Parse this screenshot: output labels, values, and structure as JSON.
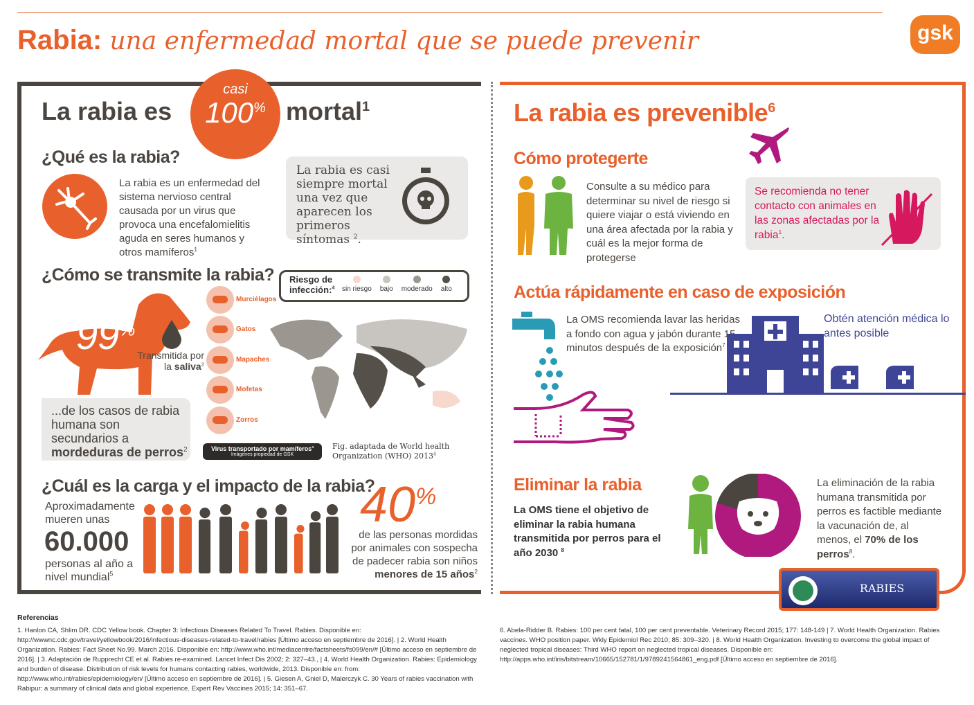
{
  "header": {
    "title_bold": "Rabia:",
    "title_italic": "una enfermedad mortal que se puede prevenir",
    "logo": "gsk"
  },
  "left": {
    "heading": {
      "pre": "La rabia es",
      "casi": "casi",
      "number": "100",
      "percent": "%",
      "post": "mortal",
      "ref": "1"
    },
    "what": {
      "title": "¿Qué es la rabia?",
      "text": "La rabia es un enfermedad del sistema nervioso central causada por un virus que provoca una encefalomielitis aguda en seres humanos y otros mamíferos",
      "ref": "1",
      "box_text": "La rabia es casi siempre mortal una vez que aparecen los primeros síntomas",
      "box_ref": "2",
      "box_end": "."
    },
    "transmission": {
      "title": "¿Cómo se transmite la rabia?",
      "number": "99",
      "percent": "%",
      "saliva_pre": "Transmitida por la",
      "saliva_bold": "saliva",
      "saliva_ref": "2",
      "cases_pre": "...de los casos de rabia humana son secundarios a",
      "cases_bold": "mordeduras de perros",
      "cases_ref": "2",
      "animals": [
        "Murciélagos",
        "Gatos",
        "Mapaches",
        "Mofetas",
        "Zorros"
      ],
      "legend_title": "Riesgo de infección:",
      "legend_ref": "4",
      "legend_items": [
        {
          "label": "sin riesgo",
          "color": "#f6d8cd"
        },
        {
          "label": "bajo",
          "color": "#c8c4bf"
        },
        {
          "label": "moderado",
          "color": "#9b968f"
        },
        {
          "label": "alto",
          "color": "#55504a"
        }
      ],
      "virus_caption": "Virus transportado por mamíferos",
      "virus_ref": "3",
      "images_caption": "Imágenes propiedad de GSK",
      "fig_caption": "Fig. adaptada de World health Organization (WHO) 2013",
      "fig_ref": "4"
    },
    "burden": {
      "title": "¿Cuál es la carga y el impacto de la rabia?",
      "pre": "Aproximadamente mueren unas",
      "number": "60.000",
      "post": "personas al año a nivel mundial",
      "ref": "5",
      "pct_number": "40",
      "pct_sign": "%",
      "pct_text": "de las personas mordidas por animales con sospecha de padecer rabia son niños",
      "pct_bold": "menores de 15 años",
      "pct_ref": "2"
    }
  },
  "right": {
    "heading": {
      "text": "La rabia es prevenible",
      "ref": "6"
    },
    "protect": {
      "title": "Cómo protegerte",
      "text": "Consulte a su médico para determinar su nivel de riesgo si quiere viajar o está viviendo en una área afectada por la rabia y cuál es la mejor forma de protegerse",
      "box_text": "Se recomienda no tener contacto con animales en las zonas afectadas por la rabia",
      "box_ref": "1",
      "box_end": "."
    },
    "act": {
      "title": "Actúa rápidamente en caso de exposición",
      "text": "La OMS recomienda lavar las heridas a fondo con agua y jabón durante 15 minutos después de la exposición",
      "ref": "7",
      "care": "Obtén atención médica lo antes posible"
    },
    "eliminate": {
      "title": "Eliminar la rabia",
      "goal": "La OMS tiene el objetivo de eliminar la rabia humana transmitida por perros para el año 2030",
      "goal_ref": "8",
      "text": "La eliminación de la rabia humana transmitida por perros es factible mediante la vacunación de, al menos, el",
      "bold": "70% de los perros",
      "ref": "8",
      "end": "."
    },
    "badge": "RABIES"
  },
  "references": {
    "title": "Referencias",
    "left": "1. Hanlon CA, Shlim DR. CDC Yellow book. Chapter 3: Infectious Diseases Related To Travel. Rabies. Disponible en: http://wwwnc.cdc.gov/travel/yellowbook/2016/infectious-diseases-related-to-travel/rabies [Último acceso en septiembre de 2016]. | 2. World Health Organization. Rabies: Fact Sheet No.99. March 2016. Disponible en: http://www.who.int/mediacentre/factsheets/fs099/en/# [Último acceso en septiembre de 2016]. | 3. Adaptación de Rupprecht CE et al. Rabies re-examined. Lancet Infect Dis 2002; 2: 327–43., | 4. World Health Organization. Rabies: Epidemiology and burden of disease. Distribution of risk levels for humans contacting rabies, worldwide, 2013. Disponible en: from: http://www.who.int/rabies/epidemiology/en/ [Último acceso en septiembre de 2016]. | 5. Giesen A, Gniel D, Malerczyk C. 30 Years of rabies vaccination with Rabipur: a summary of clinical data and global experience. Expert Rev Vaccines 2015; 14: 351–67.",
    "right": "6. Abela-Ridder B. Rabies: 100 per cent fatal, 100 per cent preventable. Veterinary Record 2015; 177: 148-149 | 7. World Health Organization. Rabies vaccines. WHO position paper. Wkly Epidemiol Rec 2010; 85: 309–320. | 8. World Health Organization. Investing to overcome the global impact of neglected tropical diseases: Third WHO report on neglected tropical diseases. Disponible en: http://apps.who.int/iris/bitstream/10665/152781/1/9789241564861_eng.pdf [Último acceso en septiembre de 2016]."
  }
}
